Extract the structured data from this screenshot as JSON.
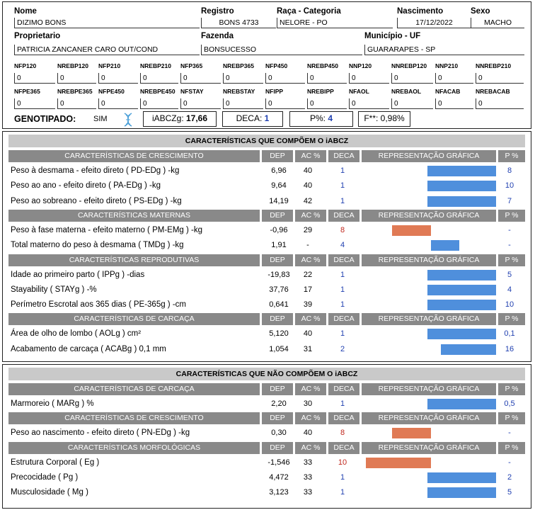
{
  "header": {
    "nome_label": "Nome",
    "nome": "DIZIMO BONS",
    "registro_label": "Registro",
    "registro": "BONS 4733",
    "raca_label": "Raça - Categoria",
    "raca": "NELORE - PO",
    "nascimento_label": "Nascimento",
    "nascimento": "17/12/2022",
    "sexo_label": "Sexo",
    "sexo": "MACHO",
    "proprietario_label": "Proprietario",
    "proprietario": "PATRICIA ZANCANER CARO OUT/COND",
    "fazenda_label": "Fazenda",
    "fazenda": "BONSUCESSO",
    "municipio_label": "Município - UF",
    "municipio": "GUARARAPES - SP"
  },
  "small_fields_row1": [
    {
      "label": "NFP120",
      "value": "0"
    },
    {
      "label": "NREBP120",
      "value": "0"
    },
    {
      "label": "NFP210",
      "value": "0"
    },
    {
      "label": "NREBP210",
      "value": "0"
    },
    {
      "label": "NFP365",
      "value": "0"
    },
    {
      "label": "NREBP365",
      "value": "0"
    },
    {
      "label": "NFP450",
      "value": "0"
    },
    {
      "label": "NREBP450",
      "value": "0"
    },
    {
      "label": "NNP120",
      "value": "0"
    },
    {
      "label": "NNREBP120",
      "value": "0"
    },
    {
      "label": "NNP210",
      "value": "0"
    },
    {
      "label": "NNREBP210",
      "value": "0"
    }
  ],
  "small_fields_row2": [
    {
      "label": "NFPE365",
      "value": "0"
    },
    {
      "label": "NREBPE365",
      "value": "0"
    },
    {
      "label": "NFPE450",
      "value": "0"
    },
    {
      "label": "NREBPE450",
      "value": "0"
    },
    {
      "label": "NFSTAY",
      "value": "0"
    },
    {
      "label": "NREBSTAY",
      "value": "0"
    },
    {
      "label": "NFIPP",
      "value": "0"
    },
    {
      "label": "NREBIPP",
      "value": "0"
    },
    {
      "label": "NFAOL",
      "value": "0"
    },
    {
      "label": "NREBAOL",
      "value": "0"
    },
    {
      "label": "NFACAB",
      "value": "0"
    },
    {
      "label": "NREBACAB",
      "value": "0"
    }
  ],
  "summary": {
    "genotipado_label": "GENOTIPADO:",
    "genotipado_value": "SIM",
    "iabcz_label": "iABCZg:",
    "iabcz_value": "17,66",
    "deca_label": "DECA:",
    "deca_value": "1",
    "p_label": "P%:",
    "p_value": "4",
    "f_text": "F**: 0,98%"
  },
  "columns": {
    "dep": "DEP",
    "ac": "AC %",
    "deca": "DECA",
    "graph": "REPRESENTAÇÃO GRÁFICA",
    "p": "P %"
  },
  "section1": {
    "title": "CARACTERÍSTICAS QUE COMPÕEM O iABCZ",
    "groups": [
      {
        "name": "CARACTERÍSTICAS DE CRESCIMENTO",
        "rows": [
          {
            "name": "Peso à desmama - efeito direto ( PD-EDg ) -kg",
            "dep": "6,96",
            "ac": "40",
            "deca": "1",
            "p": "8",
            "bar_pct": 8
          },
          {
            "name": "Peso ao ano - efeito direto ( PA-EDg ) -kg",
            "dep": "9,64",
            "ac": "40",
            "deca": "1",
            "p": "10",
            "bar_pct": 10
          },
          {
            "name": "Peso ao sobreano - efeito direto ( PS-EDg ) -kg",
            "dep": "14,19",
            "ac": "42",
            "deca": "1",
            "p": "7",
            "bar_pct": 7
          }
        ]
      },
      {
        "name": "CARACTERÍSTICAS MATERNAS",
        "rows": [
          {
            "name": "Peso à fase materna - efeito materno ( PM-EMg ) -kg",
            "dep": "-0,96",
            "ac": "29",
            "deca": "8",
            "p": "-",
            "bar_pct": 80
          },
          {
            "name": "Total materno do peso à desmama ( TMDg ) -kg",
            "dep": "1,91",
            "ac": "-",
            "deca": "4",
            "p": "-",
            "bar_pct": 40
          }
        ]
      },
      {
        "name": "CARACTERÍSTICAS REPRODUTIVAS",
        "rows": [
          {
            "name": "Idade ao primeiro parto ( IPPg ) -dias",
            "dep": "-19,83",
            "ac": "22",
            "deca": "1",
            "p": "5",
            "bar_pct": 5
          },
          {
            "name": "Stayability ( STAYg ) -%",
            "dep": "37,76",
            "ac": "17",
            "deca": "1",
            "p": "4",
            "bar_pct": 4
          },
          {
            "name": "Perímetro Escrotal aos 365 dias ( PE-365g ) -cm",
            "dep": "0,641",
            "ac": "39",
            "deca": "1",
            "p": "10",
            "bar_pct": 10
          }
        ]
      },
      {
        "name": "CARACTERÍSTICAS DE CARCAÇA",
        "rows": [
          {
            "name": "Área de olho de lombo ( AOLg ) cm²",
            "dep": "5,120",
            "ac": "40",
            "deca": "1",
            "p": "0,1",
            "bar_pct": 0.1
          },
          {
            "name": "Acabamento de carcaça ( ACABg ) 0,1 mm",
            "dep": "1,054",
            "ac": "31",
            "deca": "2",
            "p": "16",
            "bar_pct": 16
          }
        ]
      }
    ]
  },
  "section2": {
    "title": "CARACTERÍSTICAS QUE NÃO COMPÕEM O iABCZ",
    "groups": [
      {
        "name": "CARACTERÍSTICAS DE CARCAÇA",
        "rows": [
          {
            "name": "Marmoreio ( MARg ) %",
            "dep": "2,20",
            "ac": "30",
            "deca": "1",
            "p": "0,5",
            "bar_pct": 0.5
          }
        ]
      },
      {
        "name": "CARACTERÍSTICAS DE CRESCIMENTO",
        "rows": [
          {
            "name": "Peso ao nascimento - efeito direto ( PN-EDg ) -kg",
            "dep": "0,30",
            "ac": "40",
            "deca": "8",
            "p": "-",
            "bar_pct": 80
          }
        ]
      },
      {
        "name": "CARACTERÍSTICAS MORFOLÓGICAS",
        "rows": [
          {
            "name": "Estrutura Corporal ( Eg )",
            "dep": "-1,546",
            "ac": "33",
            "deca": "10",
            "p": "-",
            "bar_pct": 100
          },
          {
            "name": "Precocidade ( Pg )",
            "dep": "4,472",
            "ac": "33",
            "deca": "1",
            "p": "2",
            "bar_pct": 2
          },
          {
            "name": "Musculosidade ( Mg )",
            "dep": "3,123",
            "ac": "33",
            "deca": "1",
            "p": "5",
            "bar_pct": 5
          }
        ]
      }
    ]
  },
  "colors": {
    "positive_bar": "#4f8fdc",
    "negative_bar": "#e07a55",
    "header_gray": "#898989",
    "title_gray": "#c9c9c9",
    "value_blue": "#1f3fb0",
    "value_red": "#c0281e"
  }
}
